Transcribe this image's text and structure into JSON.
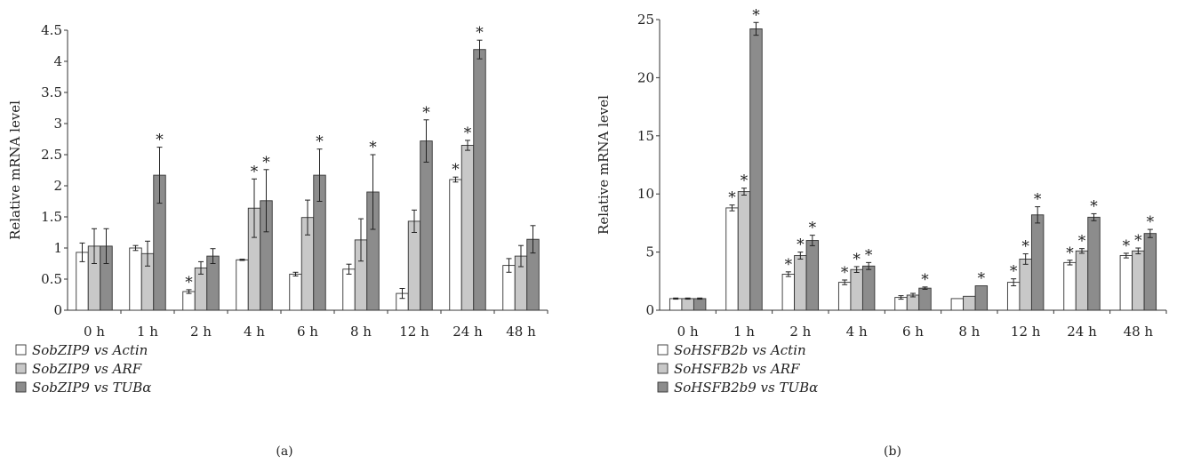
{
  "chart_data": [
    {
      "type": "bar",
      "panel_label": "(a)",
      "ylabel": "Relative mRNA level",
      "ylim": [
        0,
        4.5
      ],
      "yticks": [
        "0",
        "0.5",
        "1",
        "1.5",
        "2",
        "2.5",
        "3",
        "3.5",
        "4",
        "4.5"
      ],
      "ytick_values": [
        0,
        0.5,
        1,
        1.5,
        2,
        2.5,
        3,
        3.5,
        4,
        4.5
      ],
      "categories": [
        "0 h",
        "1 h",
        "2 h",
        "4 h",
        "6 h",
        "8 h",
        "12 h",
        "24 h",
        "48 h"
      ],
      "legend_position": "bottom-left",
      "series": [
        {
          "name": "SobZIP9 vs Actin",
          "color": "#ffffff",
          "values": [
            0.93,
            1.0,
            0.3,
            0.81,
            0.58,
            0.66,
            0.27,
            2.1,
            0.72
          ],
          "errors": [
            0.15,
            0.04,
            0.03,
            0.01,
            0.03,
            0.08,
            0.08,
            0.04,
            0.11
          ],
          "significant": [
            false,
            false,
            true,
            false,
            false,
            false,
            false,
            true,
            false
          ]
        },
        {
          "name": "SobZIP9 vs ARF",
          "color": "#c8c8c8",
          "values": [
            1.03,
            0.91,
            0.68,
            1.64,
            1.49,
            1.13,
            1.43,
            2.65,
            0.87
          ],
          "errors": [
            0.28,
            0.2,
            0.1,
            0.47,
            0.28,
            0.34,
            0.18,
            0.08,
            0.17
          ],
          "significant": [
            false,
            false,
            false,
            true,
            false,
            false,
            false,
            true,
            false
          ]
        },
        {
          "name": "SobZIP9 vs TUBα",
          "color": "#8c8c8c",
          "values": [
            1.03,
            2.17,
            0.87,
            1.76,
            2.17,
            1.9,
            2.72,
            4.19,
            1.14
          ],
          "errors": [
            0.28,
            0.45,
            0.12,
            0.5,
            0.42,
            0.6,
            0.34,
            0.15,
            0.22
          ],
          "significant": [
            false,
            true,
            false,
            true,
            true,
            true,
            true,
            true,
            false
          ]
        }
      ]
    },
    {
      "type": "bar",
      "panel_label": "(b)",
      "ylabel": "Relative mRNA level",
      "ylim": [
        0,
        25
      ],
      "yticks": [
        "0",
        "5",
        "10",
        "15",
        "20",
        "25"
      ],
      "ytick_values": [
        0,
        5,
        10,
        15,
        20,
        25
      ],
      "categories": [
        "0 h",
        "1 h",
        "2 h",
        "4 h",
        "6 h",
        "8 h",
        "12 h",
        "24 h",
        "48 h"
      ],
      "legend_position": "bottom-left",
      "series": [
        {
          "name": "SoHSFB2b vs Actin",
          "color": "#ffffff",
          "values": [
            1.0,
            8.8,
            3.1,
            2.4,
            1.1,
            1.0,
            2.4,
            4.1,
            4.7
          ],
          "errors": [
            0.05,
            0.25,
            0.2,
            0.2,
            0.15,
            0.0,
            0.3,
            0.2,
            0.2
          ],
          "significant": [
            false,
            true,
            true,
            true,
            false,
            false,
            true,
            true,
            true
          ]
        },
        {
          "name": "SoHSFB2b vs ARF",
          "color": "#c8c8c8",
          "values": [
            1.0,
            10.2,
            4.7,
            3.5,
            1.3,
            1.2,
            4.4,
            5.1,
            5.1
          ],
          "errors": [
            0.05,
            0.3,
            0.3,
            0.25,
            0.15,
            0.0,
            0.45,
            0.2,
            0.25
          ],
          "significant": [
            false,
            true,
            true,
            true,
            false,
            false,
            true,
            true,
            true
          ]
        },
        {
          "name": "SoHSFB2b9 vs TUBα",
          "color": "#8c8c8c",
          "values": [
            1.0,
            24.2,
            6.0,
            3.8,
            1.9,
            2.1,
            8.2,
            8.0,
            6.6
          ],
          "errors": [
            0.05,
            0.55,
            0.45,
            0.3,
            0.1,
            0.0,
            0.7,
            0.3,
            0.35
          ],
          "significant": [
            false,
            true,
            true,
            true,
            true,
            true,
            true,
            true,
            true
          ]
        }
      ]
    }
  ]
}
